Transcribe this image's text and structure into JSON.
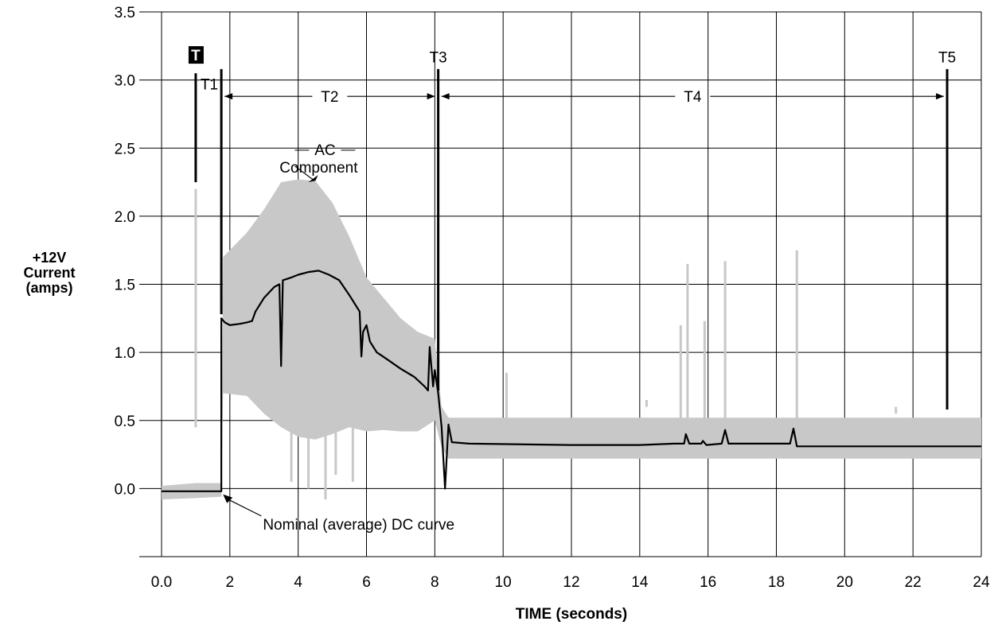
{
  "chart_data": {
    "type": "line",
    "title": "",
    "xlabel": "TIME (seconds)",
    "ylabel_lines": [
      "+12V",
      "Current",
      "(amps)"
    ],
    "xlim": [
      0,
      24
    ],
    "ylim": [
      -0.5,
      3.5
    ],
    "x_ticks": [
      0,
      2,
      4,
      6,
      8,
      10,
      12,
      14,
      16,
      18,
      20,
      22,
      24
    ],
    "x_tick_labels": [
      "0.0",
      "2",
      "4",
      "6",
      "8",
      "10",
      "12",
      "14",
      "16",
      "18",
      "20",
      "22",
      "24"
    ],
    "y_ticks": [
      0,
      0.5,
      1.0,
      1.5,
      2.0,
      2.5,
      3.0,
      3.5
    ],
    "y_tick_labels": [
      "0.0",
      "0.5",
      "1.0",
      "1.5",
      "2.0",
      "2.5",
      "3.0",
      "3.5"
    ],
    "grid": true,
    "series": [
      {
        "name": "AC Component",
        "color": "#c8c8c8",
        "upper": [
          [
            0,
            0.02
          ],
          [
            1.0,
            0.04
          ],
          [
            1.75,
            0.04
          ],
          [
            1.8,
            1.7
          ],
          [
            2.5,
            1.88
          ],
          [
            3.0,
            2.05
          ],
          [
            3.5,
            2.25
          ],
          [
            4.0,
            2.27
          ],
          [
            4.5,
            2.26
          ],
          [
            5.0,
            2.1
          ],
          [
            5.5,
            1.85
          ],
          [
            6.0,
            1.55
          ],
          [
            6.5,
            1.4
          ],
          [
            7.0,
            1.25
          ],
          [
            7.5,
            1.15
          ],
          [
            8.0,
            1.1
          ],
          [
            8.2,
            0.6
          ],
          [
            8.4,
            0.52
          ],
          [
            24,
            0.52
          ]
        ],
        "lower": [
          [
            0,
            -0.08
          ],
          [
            1.0,
            -0.07
          ],
          [
            1.75,
            -0.06
          ],
          [
            1.8,
            0.7
          ],
          [
            2.5,
            0.68
          ],
          [
            3.0,
            0.55
          ],
          [
            3.5,
            0.45
          ],
          [
            4.0,
            0.38
          ],
          [
            4.5,
            0.36
          ],
          [
            5.0,
            0.4
          ],
          [
            5.5,
            0.45
          ],
          [
            6.0,
            0.42
          ],
          [
            6.5,
            0.43
          ],
          [
            7.0,
            0.42
          ],
          [
            7.5,
            0.42
          ],
          [
            8.0,
            0.5
          ],
          [
            8.2,
            0.3
          ],
          [
            8.4,
            0.22
          ],
          [
            24,
            0.22
          ]
        ],
        "spikes": [
          [
            1.0,
            2.2
          ],
          [
            3.8,
            0.05
          ],
          [
            4.3,
            0.0
          ],
          [
            4.8,
            -0.08
          ],
          [
            5.1,
            0.1
          ],
          [
            5.6,
            0.05
          ],
          [
            8.1,
            1.3
          ],
          [
            10.1,
            0.85
          ],
          [
            14.2,
            0.65
          ],
          [
            15.2,
            1.2
          ],
          [
            15.4,
            1.65
          ],
          [
            15.9,
            1.23
          ],
          [
            16.5,
            1.67
          ],
          [
            18.6,
            1.75
          ],
          [
            21.5,
            0.55
          ]
        ]
      },
      {
        "name": "Nominal (average) DC curve",
        "color": "#000000",
        "points": [
          [
            0,
            -0.02
          ],
          [
            1.6,
            -0.02
          ],
          [
            1.75,
            -0.02
          ],
          [
            1.75,
            1.25
          ],
          [
            1.85,
            1.22
          ],
          [
            2.0,
            1.2
          ],
          [
            2.3,
            1.21
          ],
          [
            2.5,
            1.22
          ],
          [
            2.65,
            1.23
          ],
          [
            2.75,
            1.3
          ],
          [
            3.0,
            1.4
          ],
          [
            3.3,
            1.48
          ],
          [
            3.45,
            1.5
          ],
          [
            3.5,
            0.9
          ],
          [
            3.55,
            1.53
          ],
          [
            3.8,
            1.55
          ],
          [
            4.0,
            1.57
          ],
          [
            4.3,
            1.59
          ],
          [
            4.6,
            1.6
          ],
          [
            4.9,
            1.57
          ],
          [
            5.2,
            1.53
          ],
          [
            5.5,
            1.42
          ],
          [
            5.8,
            1.3
          ],
          [
            5.85,
            0.97
          ],
          [
            5.9,
            1.15
          ],
          [
            6.0,
            1.2
          ],
          [
            6.1,
            1.08
          ],
          [
            6.3,
            1.0
          ],
          [
            6.6,
            0.95
          ],
          [
            7.0,
            0.88
          ],
          [
            7.4,
            0.82
          ],
          [
            7.7,
            0.75
          ],
          [
            7.8,
            0.72
          ],
          [
            7.85,
            1.04
          ],
          [
            7.95,
            0.75
          ],
          [
            8.0,
            0.87
          ],
          [
            8.1,
            0.7
          ],
          [
            8.2,
            0.45
          ],
          [
            8.3,
            0.0
          ],
          [
            8.4,
            0.47
          ],
          [
            8.5,
            0.34
          ],
          [
            9.0,
            0.33
          ],
          [
            12.0,
            0.32
          ],
          [
            14.0,
            0.32
          ],
          [
            15.0,
            0.33
          ],
          [
            15.3,
            0.33
          ],
          [
            15.35,
            0.4
          ],
          [
            15.45,
            0.33
          ],
          [
            15.8,
            0.33
          ],
          [
            15.85,
            0.35
          ],
          [
            15.95,
            0.32
          ],
          [
            16.4,
            0.33
          ],
          [
            16.5,
            0.43
          ],
          [
            16.6,
            0.33
          ],
          [
            18.4,
            0.33
          ],
          [
            18.5,
            0.44
          ],
          [
            18.6,
            0.31
          ],
          [
            24,
            0.31
          ]
        ]
      }
    ],
    "markers": [
      {
        "label": "T",
        "x": 1.0,
        "y_from": 2.25,
        "y_to": 3.05,
        "boxed": true
      },
      {
        "label": "T1",
        "x": 1.75,
        "y_from": 1.28,
        "y_to": 3.08
      },
      {
        "label": "T3",
        "x": 8.1,
        "y_from": 0.72,
        "y_to": 3.08
      },
      {
        "label": "T5",
        "x": 23.0,
        "y_from": 0.58,
        "y_to": 3.08
      }
    ],
    "intervals": [
      {
        "label": "T2",
        "from": 1.75,
        "to": 8.1,
        "y": 2.88
      },
      {
        "label": "T4",
        "from": 8.1,
        "to": 23.0,
        "y": 2.88
      }
    ],
    "annotations": [
      {
        "text_lines": [
          "AC",
          "Component"
        ],
        "x": 4.6,
        "y": 2.45,
        "arrow_to": [
          4.3,
          2.25
        ]
      },
      {
        "text_lines": [
          "Nominal (average) DC curve"
        ],
        "x": 3.2,
        "y": -0.26,
        "arrow_to": [
          1.8,
          -0.02
        ]
      }
    ]
  }
}
